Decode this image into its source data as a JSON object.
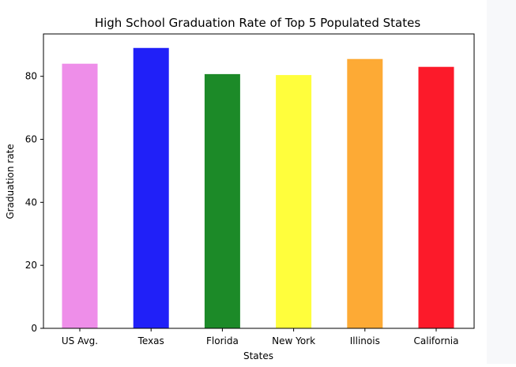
{
  "chart_data": {
    "type": "bar",
    "title": "High School Graduation Rate of Top 5 Populated States",
    "xlabel": "States",
    "ylabel": "Graduation rate",
    "categories": [
      "US Avg.",
      "Texas",
      "Florida",
      "New York",
      "Illinois",
      "California"
    ],
    "values": [
      84,
      89,
      80.7,
      80.4,
      85.5,
      83
    ],
    "colors": [
      "#ee8ee9",
      "#2020f8",
      "#1c8a28",
      "#fffe3c",
      "#fdaa35",
      "#fc1a2a"
    ],
    "ylim": [
      0,
      93.45
    ],
    "yticks": [
      0,
      20,
      40,
      60,
      80
    ],
    "grid": false,
    "legend": "none"
  }
}
